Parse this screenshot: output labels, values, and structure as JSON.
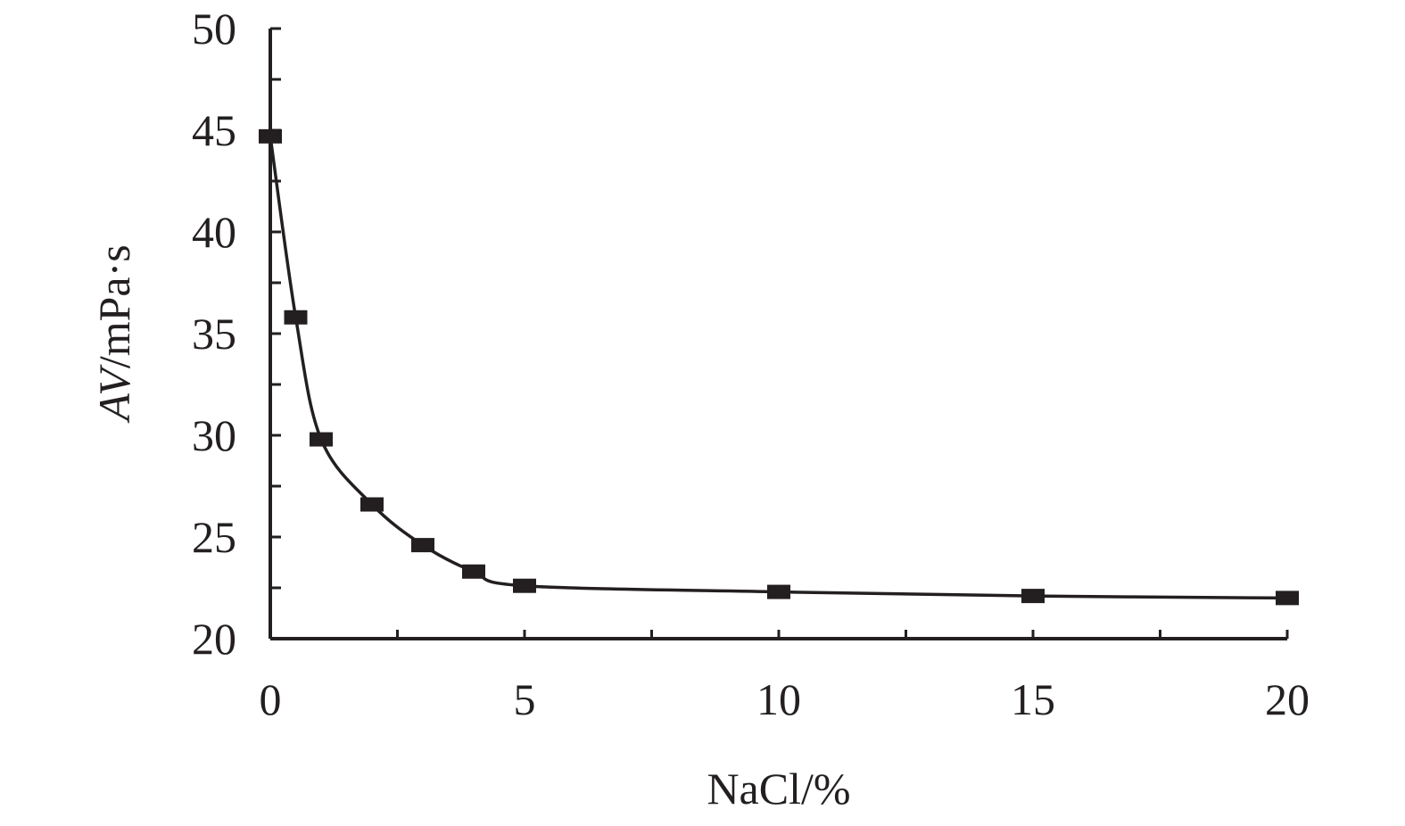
{
  "chart_data": {
    "type": "line",
    "title": "",
    "xlabel": "NaCl/%",
    "ylabel_italic": "AV",
    "ylabel_rest": "/mPa·s",
    "xlim": [
      0,
      20
    ],
    "ylim": [
      20,
      50
    ],
    "x_ticks": [
      0,
      5,
      10,
      15,
      20
    ],
    "x_minor_step": 2.5,
    "y_ticks": [
      20,
      25,
      30,
      35,
      40,
      45,
      50
    ],
    "y_minor_step": 2.5,
    "grid": false,
    "legend": "none",
    "series": [
      {
        "marker": "square",
        "color": "#231f20",
        "x": [
          0,
          0.5,
          1,
          2,
          3,
          4,
          5,
          10,
          15,
          20
        ],
        "y": [
          44.7,
          35.8,
          29.8,
          26.6,
          24.6,
          23.3,
          22.6,
          22.3,
          22.1,
          22.0
        ]
      }
    ]
  }
}
